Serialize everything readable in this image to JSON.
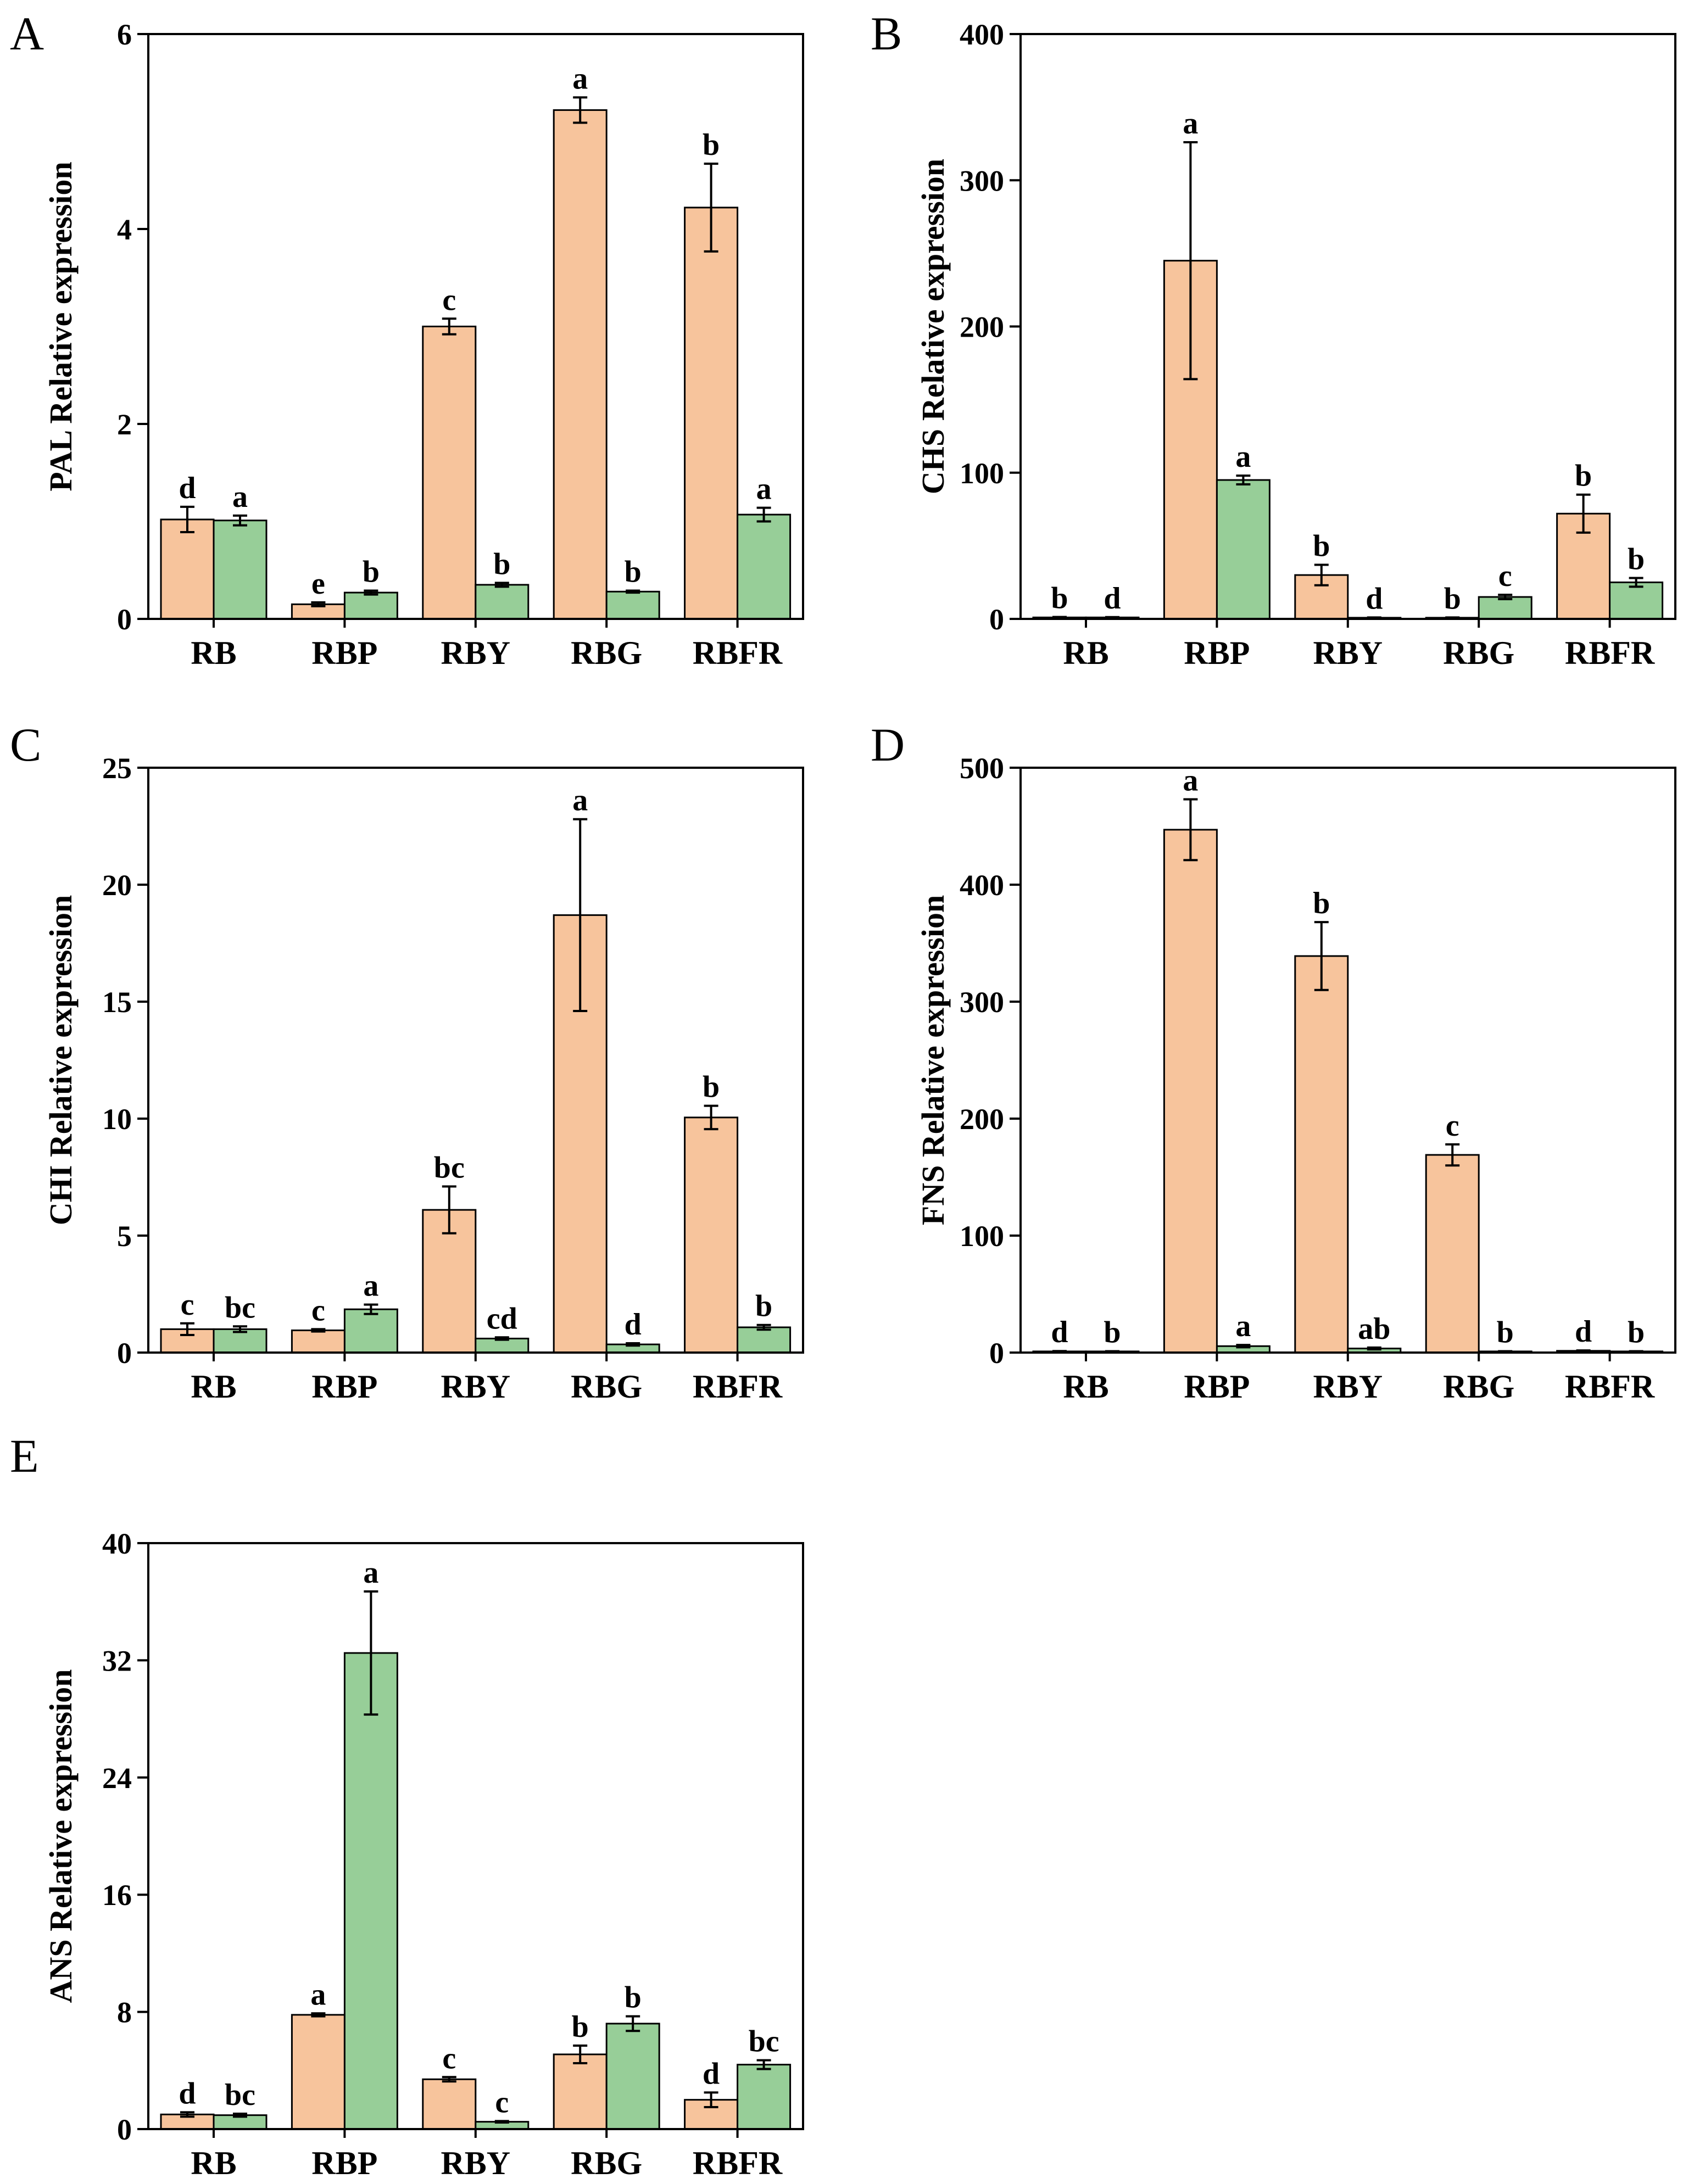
{
  "colors": {
    "series1": "#F7C49C",
    "series2": "#97CE98",
    "stroke": "#000000"
  },
  "chart_data": [
    {
      "panel": "A",
      "type": "bar",
      "ylabel": "PAL Relative expression",
      "ylim": [
        0,
        6
      ],
      "yticks": [
        "0",
        "2",
        "4",
        "6"
      ],
      "categories": [
        "RB",
        "RBP",
        "RBY",
        "RBG",
        "RBFR"
      ],
      "series": [
        {
          "name": "series1",
          "values": [
            1.02,
            0.15,
            3.0,
            5.22,
            4.22
          ],
          "errors": [
            0.13,
            0.02,
            0.08,
            0.13,
            0.45
          ],
          "letters": [
            "d",
            "e",
            "c",
            "a",
            "b"
          ]
        },
        {
          "name": "series2",
          "values": [
            1.01,
            0.27,
            0.35,
            0.28,
            1.07
          ],
          "errors": [
            0.05,
            0.02,
            0.02,
            0.01,
            0.07
          ],
          "letters": [
            "a",
            "b",
            "b",
            "b",
            "a"
          ]
        }
      ]
    },
    {
      "panel": "B",
      "type": "bar",
      "ylabel": "CHS Relative expression",
      "ylim": [
        0,
        400
      ],
      "yticks": [
        "0",
        "100",
        "200",
        "300",
        "400"
      ],
      "categories": [
        "RB",
        "RBP",
        "RBY",
        "RBG",
        "RBFR"
      ],
      "series": [
        {
          "name": "series1",
          "values": [
            1.0,
            245,
            30,
            0.8,
            72
          ],
          "errors": [
            0.3,
            81,
            7,
            0.2,
            13
          ],
          "letters": [
            "b",
            "a",
            "b",
            "b",
            "b"
          ]
        },
        {
          "name": "series2",
          "values": [
            1.0,
            95,
            0.8,
            15,
            25
          ],
          "errors": [
            0.2,
            3,
            0.2,
            1.5,
            3
          ],
          "letters": [
            "d",
            "a",
            "d",
            "c",
            "b"
          ]
        }
      ]
    },
    {
      "panel": "C",
      "type": "bar",
      "ylabel": "CHI Relative expression",
      "ylim": [
        0,
        25
      ],
      "yticks": [
        "0",
        "5",
        "10",
        "15",
        "20",
        "25"
      ],
      "categories": [
        "RB",
        "RBP",
        "RBY",
        "RBG",
        "RBFR"
      ],
      "series": [
        {
          "name": "series1",
          "values": [
            1.0,
            0.95,
            6.1,
            18.7,
            10.05
          ],
          "errors": [
            0.25,
            0.05,
            1.0,
            4.1,
            0.5
          ],
          "letters": [
            "c",
            "c",
            "bc",
            "a",
            "b"
          ]
        },
        {
          "name": "series2",
          "values": [
            1.0,
            1.85,
            0.6,
            0.35,
            1.08
          ],
          "errors": [
            0.12,
            0.2,
            0.05,
            0.05,
            0.1
          ],
          "letters": [
            "bc",
            "a",
            "cd",
            "d",
            "b"
          ]
        }
      ]
    },
    {
      "panel": "D",
      "type": "bar",
      "ylabel": "FNS Relative expression",
      "ylim": [
        0,
        500
      ],
      "yticks": [
        "0",
        "100",
        "200",
        "300",
        "400",
        "500"
      ],
      "categories": [
        "RB",
        "RBP",
        "RBY",
        "RBG",
        "RBFR"
      ],
      "series": [
        {
          "name": "series1",
          "values": [
            1.0,
            447,
            339,
            169,
            1.5
          ],
          "errors": [
            0.3,
            26,
            29,
            9,
            0.3
          ],
          "letters": [
            "d",
            "a",
            "b",
            "c",
            "d"
          ]
        },
        {
          "name": "series2",
          "values": [
            1.0,
            5.5,
            3.5,
            1.0,
            1.0
          ],
          "errors": [
            0.2,
            1.0,
            0.8,
            0.2,
            0.2
          ],
          "letters": [
            "b",
            "a",
            "ab",
            "b",
            "b"
          ]
        }
      ]
    },
    {
      "panel": "E",
      "type": "bar",
      "ylabel": "ANS Relative expression",
      "ylim": [
        0,
        40
      ],
      "yticks": [
        "0",
        "8",
        "16",
        "24",
        "32",
        "40"
      ],
      "categories": [
        "RB",
        "RBP",
        "RBY",
        "RBG",
        "RBFR"
      ],
      "series": [
        {
          "name": "series1",
          "values": [
            1.0,
            7.8,
            3.4,
            5.1,
            2.0
          ],
          "errors": [
            0.15,
            0.1,
            0.15,
            0.6,
            0.5
          ],
          "letters": [
            "d",
            "a",
            "c",
            "b",
            "d"
          ]
        },
        {
          "name": "series2",
          "values": [
            0.95,
            32.5,
            0.5,
            7.2,
            4.4
          ],
          "errors": [
            0.1,
            4.2,
            0.05,
            0.5,
            0.3
          ],
          "letters": [
            "bc",
            "a",
            "c",
            "b",
            "bc"
          ]
        }
      ]
    }
  ]
}
